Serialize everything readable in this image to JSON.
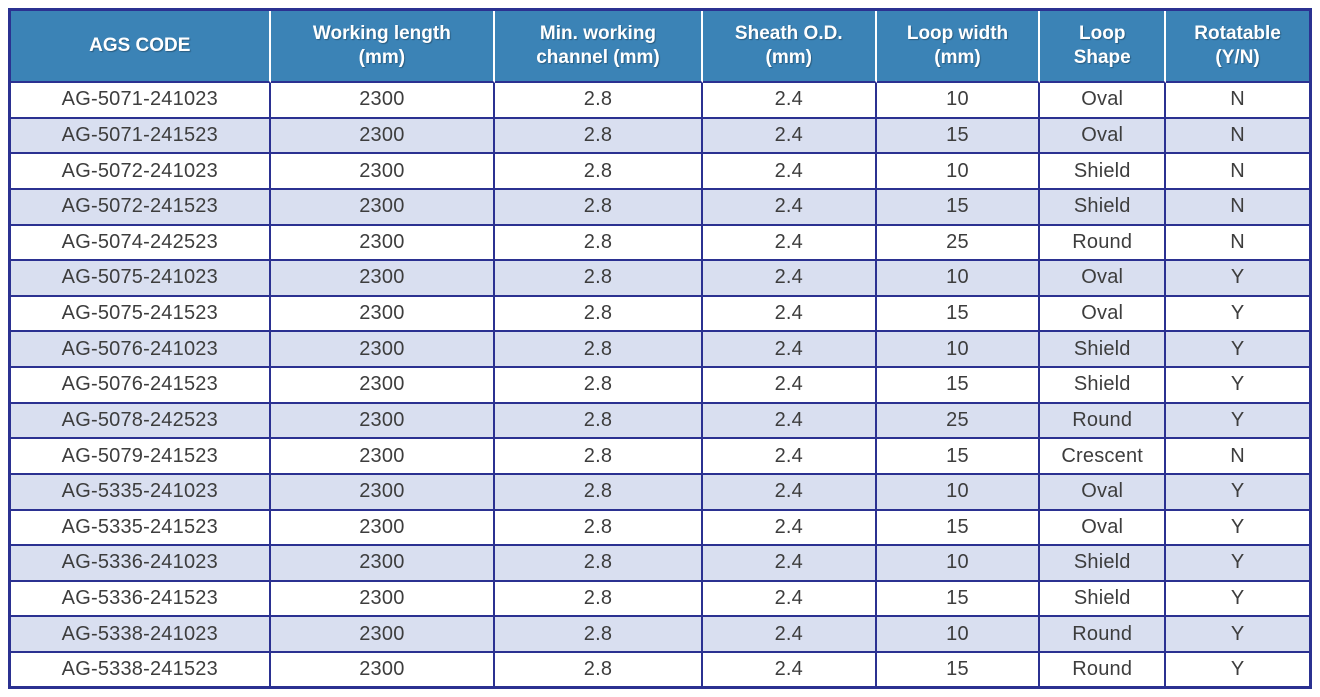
{
  "colors": {
    "header_bg": "#3b83b6",
    "border_navy": "#2b3191",
    "row_alt": "#d9dff0",
    "row_plain": "#ffffff",
    "header_text": "#ffffff",
    "body_text": "#3d3d3d"
  },
  "table": {
    "columns": [
      {
        "line1": "AGS CODE",
        "line2": "",
        "width": "20.0%"
      },
      {
        "line1": "Working length",
        "line2": "(mm)",
        "width": "17.3%"
      },
      {
        "line1": "Min. working",
        "line2": "channel (mm)",
        "width": "16.0%"
      },
      {
        "line1": "Sheath O.D.",
        "line2": "(mm)",
        "width": "13.4%"
      },
      {
        "line1": "Loop width",
        "line2": "(mm)",
        "width": "12.6%"
      },
      {
        "line1": "Loop",
        "line2": "Shape",
        "width": "9.7%"
      },
      {
        "line1": "Rotatable",
        "line2": "(Y/N)",
        "width": "11.0%"
      }
    ],
    "rows": [
      [
        "AG-5071-241023",
        "2300",
        "2.8",
        "2.4",
        "10",
        "Oval",
        "N"
      ],
      [
        "AG-5071-241523",
        "2300",
        "2.8",
        "2.4",
        "15",
        "Oval",
        "N"
      ],
      [
        "AG-5072-241023",
        "2300",
        "2.8",
        "2.4",
        "10",
        "Shield",
        "N"
      ],
      [
        "AG-5072-241523",
        "2300",
        "2.8",
        "2.4",
        "15",
        "Shield",
        "N"
      ],
      [
        "AG-5074-242523",
        "2300",
        "2.8",
        "2.4",
        "25",
        "Round",
        "N"
      ],
      [
        "AG-5075-241023",
        "2300",
        "2.8",
        "2.4",
        "10",
        "Oval",
        "Y"
      ],
      [
        "AG-5075-241523",
        "2300",
        "2.8",
        "2.4",
        "15",
        "Oval",
        "Y"
      ],
      [
        "AG-5076-241023",
        "2300",
        "2.8",
        "2.4",
        "10",
        "Shield",
        "Y"
      ],
      [
        "AG-5076-241523",
        "2300",
        "2.8",
        "2.4",
        "15",
        "Shield",
        "Y"
      ],
      [
        "AG-5078-242523",
        "2300",
        "2.8",
        "2.4",
        "25",
        "Round",
        "Y"
      ],
      [
        "AG-5079-241523",
        "2300",
        "2.8",
        "2.4",
        "15",
        "Crescent",
        "N"
      ],
      [
        "AG-5335-241023",
        "2300",
        "2.8",
        "2.4",
        "10",
        "Oval",
        "Y"
      ],
      [
        "AG-5335-241523",
        "2300",
        "2.8",
        "2.4",
        "15",
        "Oval",
        "Y"
      ],
      [
        "AG-5336-241023",
        "2300",
        "2.8",
        "2.4",
        "10",
        "Shield",
        "Y"
      ],
      [
        "AG-5336-241523",
        "2300",
        "2.8",
        "2.4",
        "15",
        "Shield",
        "Y"
      ],
      [
        "AG-5338-241023",
        "2300",
        "2.8",
        "2.4",
        "10",
        "Round",
        "Y"
      ],
      [
        "AG-5338-241523",
        "2300",
        "2.8",
        "2.4",
        "15",
        "Round",
        "Y"
      ]
    ]
  }
}
